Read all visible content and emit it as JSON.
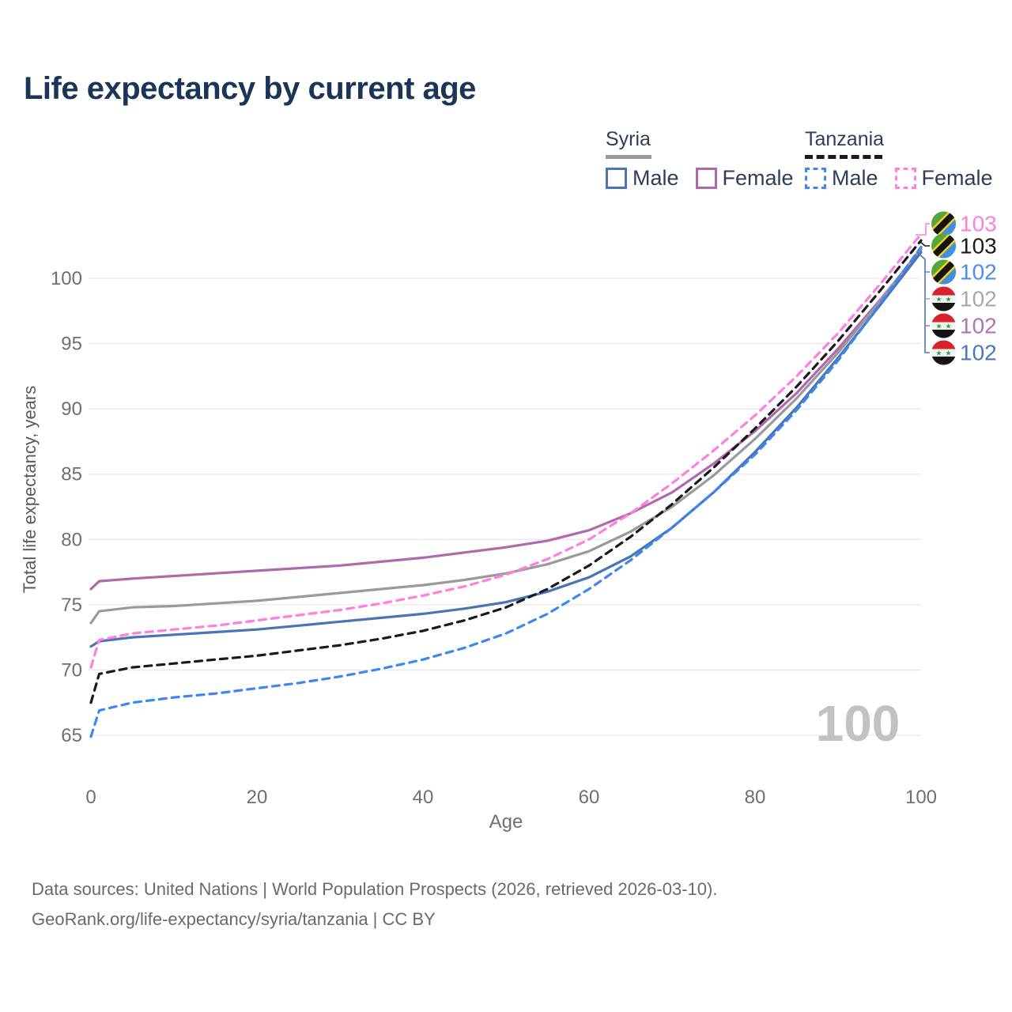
{
  "title": "Life expectancy by current age",
  "legend": {
    "groups": [
      {
        "label": "Syria",
        "line_style": "solid",
        "underline_color": "#9a9a9a",
        "items": [
          {
            "label": "Male",
            "color": "#4a74b4"
          },
          {
            "label": "Female",
            "color": "#b169ae"
          }
        ]
      },
      {
        "label": "Tanzania",
        "line_style": "dashed",
        "underline_color": "#1a1a1a",
        "items": [
          {
            "label": "Male",
            "color": "#3f86f0"
          },
          {
            "label": "Female",
            "color": "#ff7fe1"
          }
        ]
      }
    ]
  },
  "watermark": "100",
  "chart_data": {
    "type": "line",
    "title": "Life expectancy by current age",
    "xlabel": "Age",
    "ylabel": "Total life expectancy, years",
    "x_ticks": [
      0,
      20,
      40,
      60,
      80,
      100
    ],
    "y_ticks": [
      65,
      70,
      75,
      80,
      85,
      90,
      95,
      100
    ],
    "xlim": [
      0,
      100
    ],
    "ylim": [
      63.5,
      104.5
    ],
    "grid": "horizontal",
    "grid_color": "#e9e9e9",
    "x": [
      0,
      1,
      5,
      10,
      15,
      20,
      25,
      30,
      35,
      40,
      45,
      50,
      55,
      60,
      65,
      70,
      75,
      80,
      85,
      90,
      95,
      100
    ],
    "series": [
      {
        "name": "Syria Female",
        "color": "#b169ae",
        "dashed": false,
        "values": [
          76.2,
          76.8,
          77.0,
          77.2,
          77.4,
          77.6,
          77.8,
          78.0,
          78.3,
          78.6,
          79.0,
          79.4,
          79.9,
          80.7,
          82.0,
          83.6,
          85.8,
          88.3,
          91.2,
          94.6,
          98.3,
          102.2
        ]
      },
      {
        "name": "Syria Both sexes",
        "color": "#9a9a9a",
        "dashed": false,
        "values": [
          73.6,
          74.5,
          74.8,
          74.9,
          75.1,
          75.3,
          75.6,
          75.9,
          76.2,
          76.5,
          76.9,
          77.4,
          78.1,
          79.1,
          80.6,
          82.5,
          84.9,
          87.7,
          90.8,
          94.3,
          98.2,
          102.3
        ]
      },
      {
        "name": "Syria Male",
        "color": "#4a74b4",
        "dashed": false,
        "values": [
          71.8,
          72.2,
          72.5,
          72.7,
          72.9,
          73.1,
          73.4,
          73.7,
          74.0,
          74.3,
          74.7,
          75.2,
          76.0,
          77.1,
          78.7,
          80.9,
          83.6,
          86.7,
          90.1,
          93.9,
          97.9,
          102.0
        ]
      },
      {
        "name": "Tanzania Female",
        "color": "#ff7fe1",
        "dashed": true,
        "values": [
          70.2,
          72.3,
          72.8,
          73.1,
          73.4,
          73.8,
          74.2,
          74.6,
          75.1,
          75.7,
          76.4,
          77.3,
          78.5,
          80.0,
          82.0,
          84.3,
          86.8,
          89.5,
          92.5,
          95.8,
          99.5,
          103.4
        ]
      },
      {
        "name": "Tanzania Both sexes",
        "color": "#1a1a1a",
        "dashed": true,
        "values": [
          67.5,
          69.7,
          70.2,
          70.5,
          70.8,
          71.1,
          71.5,
          71.9,
          72.4,
          73.0,
          73.8,
          74.8,
          76.2,
          78.0,
          80.2,
          82.7,
          85.5,
          88.5,
          91.7,
          95.2,
          99.0,
          102.9
        ]
      },
      {
        "name": "Tanzania Male",
        "color": "#3f86f0",
        "dashed": true,
        "values": [
          64.9,
          66.9,
          67.5,
          67.9,
          68.2,
          68.6,
          69.0,
          69.5,
          70.1,
          70.8,
          71.7,
          72.8,
          74.3,
          76.2,
          78.4,
          80.9,
          83.6,
          86.5,
          89.9,
          93.7,
          98.0,
          102.4
        ]
      }
    ],
    "end_labels": [
      {
        "country": "Tanzania",
        "series": "Female",
        "value": "103",
        "color": "#ff7fe1",
        "flag": "tanzania"
      },
      {
        "country": "Tanzania",
        "series": "Both sexes",
        "value": "103",
        "color": "#1a1a1a",
        "flag": "tanzania"
      },
      {
        "country": "Tanzania",
        "series": "Male",
        "value": "102",
        "color": "#4d8fea",
        "flag": "tanzania"
      },
      {
        "country": "Syria",
        "series": "Both sexes",
        "value": "102",
        "color": "#a8a8a8",
        "flag": "syria"
      },
      {
        "country": "Syria",
        "series": "Female",
        "value": "102",
        "color": "#b273b3",
        "flag": "syria"
      },
      {
        "country": "Syria",
        "series": "Male",
        "value": "102",
        "color": "#4a77c4",
        "flag": "syria"
      }
    ]
  },
  "axes": {
    "x_label": "Age",
    "y_label": "Total life expectancy, years"
  },
  "footer": {
    "line1": "Data sources: United Nations | World Population Prospects (2026, retrieved 2026-03-10).",
    "line2": "GeoRank.org/life-expectancy/syria/tanzania | CC BY"
  },
  "colors": {
    "title": "#1c3557",
    "legend_text": "#2f3e56",
    "axis_text": "#6f6f6f",
    "watermark": "#c2c2c2",
    "gridline": "#e9e9e9"
  }
}
